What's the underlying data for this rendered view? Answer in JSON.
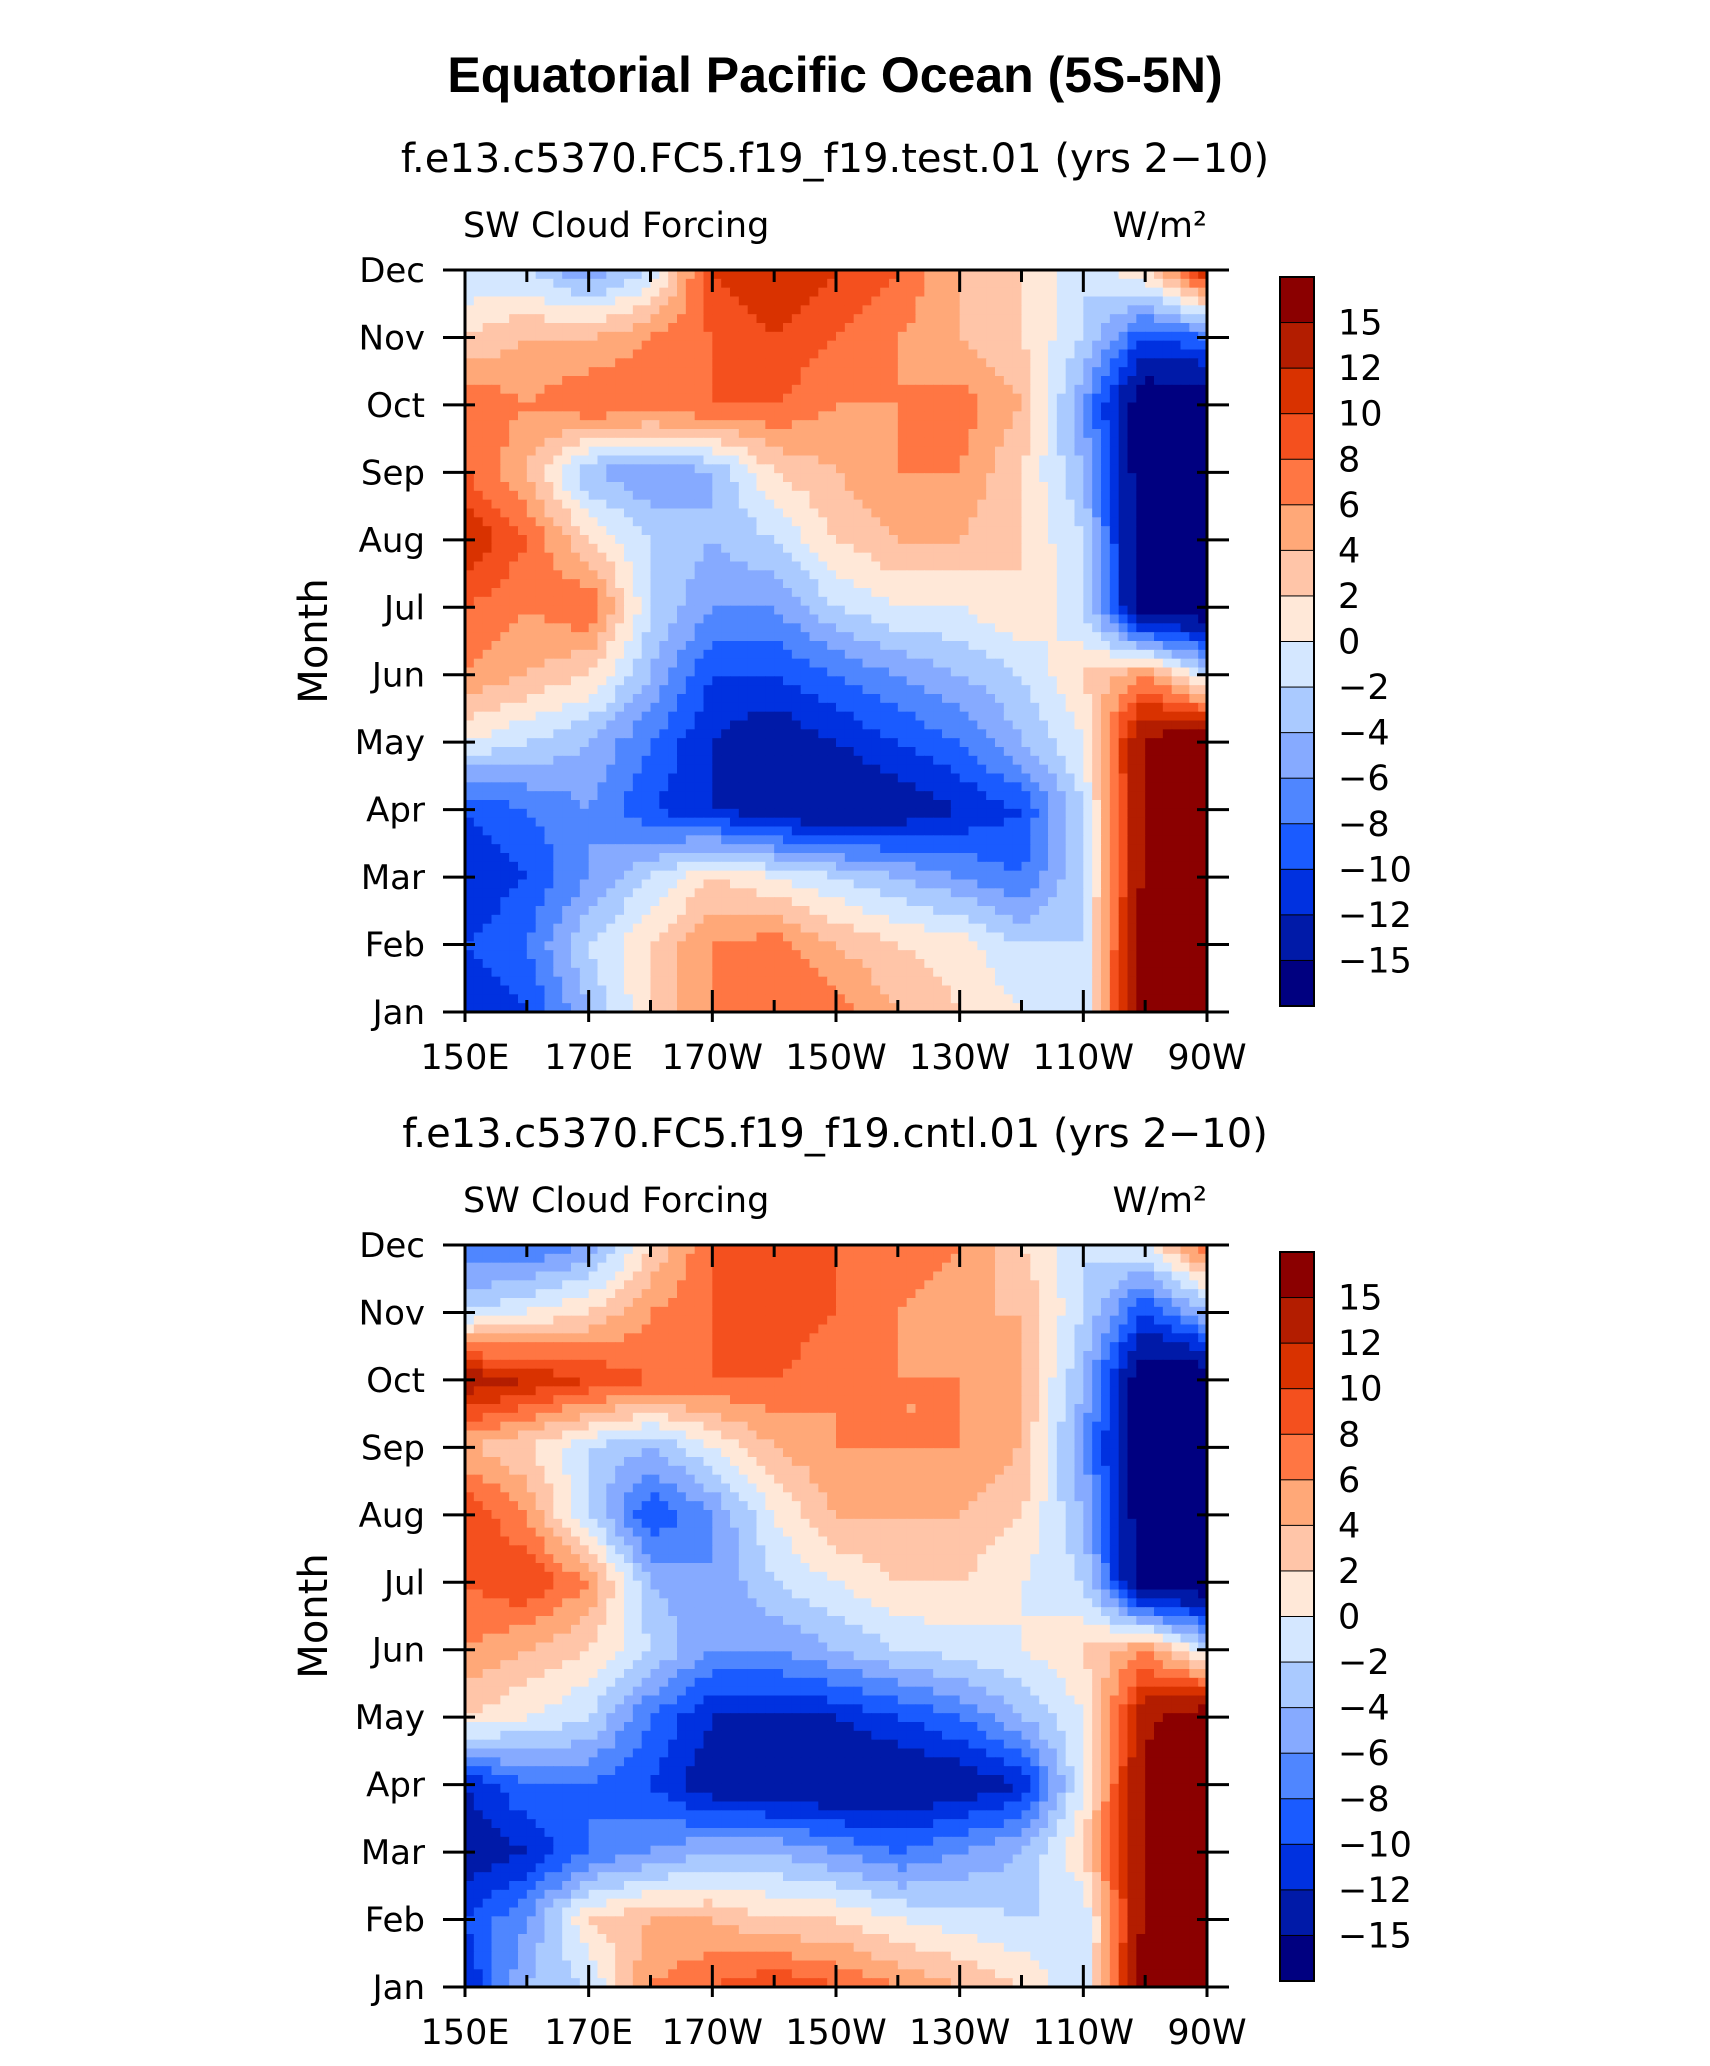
{
  "title": "Equatorial Pacific Ocean (5S-5N)",
  "colorbar": {
    "labels": [
      "15",
      "12",
      "10",
      "8",
      "6",
      "4",
      "2",
      "0",
      "−2",
      "−4",
      "−6",
      "−8",
      "−10",
      "−12",
      "−15"
    ],
    "levels": [
      15,
      12,
      10,
      8,
      6,
      4,
      2,
      0,
      -2,
      -4,
      -6,
      -8,
      -10,
      -12,
      -15
    ],
    "colors": [
      "#8b0000",
      "#b31d00",
      "#d93200",
      "#f4501e",
      "#ff7643",
      "#ffa878",
      "#ffc5a8",
      "#ffe8d8",
      "#d4e7ff",
      "#aacaff",
      "#86aaff",
      "#4f86ff",
      "#1a5bff",
      "#0031e0",
      "#001aa8",
      "#000080"
    ]
  },
  "chart_data": [
    {
      "type": "heatmap",
      "subtitle": "f.e13.c5370.FC5.f19_f19.test.01 (yrs 2−10)",
      "left_label": "SW Cloud Forcing",
      "units_label": "W/m²",
      "ylabel": "Month",
      "x_ticks": [
        "150E",
        "170E",
        "170W",
        "150W",
        "130W",
        "110W",
        "90W"
      ],
      "y_ticks": [
        "Jan",
        "Feb",
        "Mar",
        "Apr",
        "May",
        "Jun",
        "Jul",
        "Aug",
        "Sep",
        "Oct",
        "Nov",
        "Dec"
      ],
      "grid": [
        [
          -12,
          -10,
          -4,
          2,
          6,
          8,
          7,
          4,
          2,
          0,
          -2,
          18,
          18
        ],
        [
          -10,
          -8,
          -2,
          2,
          6,
          7,
          4,
          2,
          1,
          -2,
          -2,
          18,
          18
        ],
        [
          -12,
          -10,
          -6,
          -2,
          2,
          0,
          -2,
          -4,
          -6,
          -8,
          -2,
          16,
          18
        ],
        [
          -10,
          -8,
          -6,
          -10,
          -12,
          -14,
          -15,
          -14,
          -12,
          -10,
          -2,
          16,
          18
        ],
        [
          0,
          -2,
          -4,
          -8,
          -12,
          -14,
          -12,
          -10,
          -8,
          -4,
          0,
          16,
          18
        ],
        [
          6,
          4,
          2,
          -4,
          -10,
          -10,
          -8,
          -6,
          -4,
          -2,
          2,
          6,
          -2
        ],
        [
          8,
          6,
          8,
          -2,
          -6,
          -6,
          -2,
          0,
          0,
          2,
          -2,
          -18,
          -18
        ],
        [
          12,
          8,
          2,
          -2,
          -4,
          -2,
          2,
          4,
          4,
          2,
          -2,
          -18,
          -18
        ],
        [
          8,
          4,
          -4,
          -6,
          -4,
          2,
          4,
          6,
          6,
          2,
          -4,
          -18,
          -18
        ],
        [
          8,
          6,
          8,
          8,
          8,
          8,
          6,
          6,
          7,
          4,
          -6,
          -18,
          -18
        ],
        [
          2,
          4,
          4,
          6,
          8,
          10,
          8,
          6,
          4,
          2,
          -2,
          -10,
          -8
        ],
        [
          -2,
          -2,
          -6,
          -2,
          10,
          12,
          10,
          8,
          4,
          2,
          -2,
          2,
          12
        ]
      ]
    },
    {
      "type": "heatmap",
      "subtitle": "f.e13.c5370.FC5.f19_f19.cntl.01 (yrs 2−10)",
      "left_label": "SW Cloud Forcing",
      "units_label": "W/m²",
      "ylabel": "Month",
      "x_ticks": [
        "150E",
        "170E",
        "170W",
        "150W",
        "130W",
        "110W",
        "90W"
      ],
      "y_ticks": [
        "Jan",
        "Feb",
        "Mar",
        "Apr",
        "May",
        "Jun",
        "Jul",
        "Aug",
        "Sep",
        "Oct",
        "Nov",
        "Dec"
      ],
      "grid": [
        [
          -12,
          -4,
          -2,
          6,
          8,
          10,
          8,
          6,
          4,
          2,
          -2,
          18,
          18
        ],
        [
          -10,
          -6,
          2,
          4,
          4,
          2,
          2,
          0,
          -1,
          -2,
          -2,
          16,
          18
        ],
        [
          -14,
          -12,
          -8,
          -6,
          -4,
          -4,
          -6,
          -8,
          -6,
          -4,
          2,
          16,
          18
        ],
        [
          -12,
          -8,
          -8,
          -10,
          -14,
          -15,
          -15,
          -15,
          -14,
          -12,
          0,
          16,
          18
        ],
        [
          2,
          0,
          -2,
          -8,
          -12,
          -12,
          -12,
          -10,
          -8,
          -4,
          0,
          14,
          18
        ],
        [
          6,
          4,
          2,
          -2,
          -6,
          -6,
          -4,
          -2,
          -1,
          0,
          2,
          6,
          -2
        ],
        [
          8,
          10,
          6,
          -4,
          -6,
          -2,
          0,
          2,
          2,
          0,
          -2,
          -18,
          -18
        ],
        [
          10,
          6,
          -2,
          -10,
          -6,
          0,
          4,
          4,
          4,
          2,
          -4,
          -18,
          -18
        ],
        [
          4,
          2,
          -2,
          -4,
          0,
          4,
          6,
          6,
          6,
          4,
          -6,
          -18,
          -18
        ],
        [
          14,
          12,
          10,
          8,
          8,
          8,
          6,
          6,
          6,
          4,
          -4,
          -18,
          -18
        ],
        [
          -2,
          0,
          2,
          6,
          8,
          10,
          8,
          6,
          4,
          4,
          -2,
          -10,
          -4
        ],
        [
          -8,
          -8,
          -6,
          2,
          8,
          8,
          8,
          8,
          6,
          2,
          -2,
          0,
          8
        ]
      ]
    }
  ]
}
